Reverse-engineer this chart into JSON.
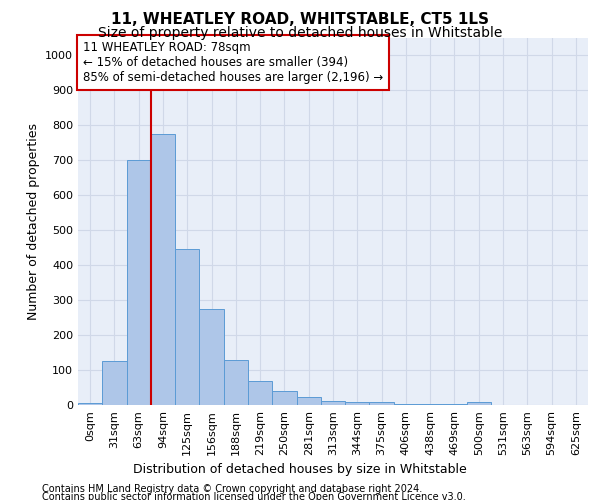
{
  "title": "11, WHEATLEY ROAD, WHITSTABLE, CT5 1LS",
  "subtitle": "Size of property relative to detached houses in Whitstable",
  "xlabel": "Distribution of detached houses by size in Whitstable",
  "ylabel": "Number of detached properties",
  "footnote1": "Contains HM Land Registry data © Crown copyright and database right 2024.",
  "footnote2": "Contains public sector information licensed under the Open Government Licence v3.0.",
  "bar_labels": [
    "0sqm",
    "31sqm",
    "63sqm",
    "94sqm",
    "125sqm",
    "156sqm",
    "188sqm",
    "219sqm",
    "250sqm",
    "281sqm",
    "313sqm",
    "344sqm",
    "375sqm",
    "406sqm",
    "438sqm",
    "469sqm",
    "500sqm",
    "531sqm",
    "563sqm",
    "594sqm",
    "625sqm"
  ],
  "bar_values": [
    5,
    125,
    700,
    775,
    445,
    275,
    130,
    70,
    40,
    22,
    12,
    10,
    8,
    2,
    2,
    2,
    8,
    0,
    0,
    0,
    0
  ],
  "bar_color": "#aec6e8",
  "bar_edge_color": "#5b9bd5",
  "grid_color": "#d0d8e8",
  "background_color": "#e8eef8",
  "ylim": [
    0,
    1050
  ],
  "yticks": [
    0,
    100,
    200,
    300,
    400,
    500,
    600,
    700,
    800,
    900,
    1000
  ],
  "property_name": "11 WHEATLEY ROAD: 78sqm",
  "annotation_line1": "← 15% of detached houses are smaller (394)",
  "annotation_line2": "85% of semi-detached houses are larger (2,196) →",
  "vline_x": 2.5,
  "vline_color": "#cc0000",
  "annotation_box_edgecolor": "#cc0000",
  "title_fontsize": 11,
  "subtitle_fontsize": 10,
  "axis_label_fontsize": 9,
  "tick_fontsize": 8,
  "annotation_fontsize": 8.5,
  "footnote_fontsize": 7
}
